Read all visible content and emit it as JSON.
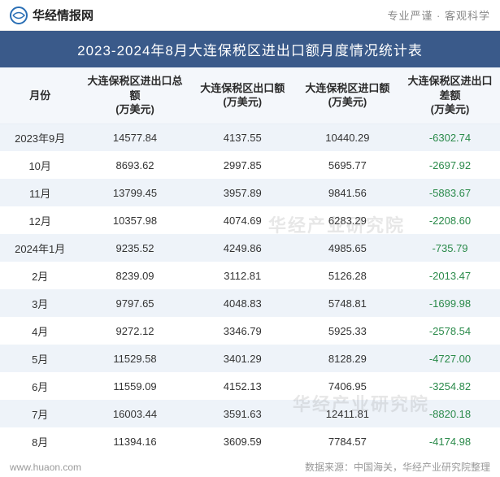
{
  "header": {
    "site_name": "华经情报网",
    "tagline": "专业严谨 · 客观科学"
  },
  "title": "2023-2024年8月大连保税区进出口额月度情况统计表",
  "columns": [
    "月份",
    "大连保税区进出口总额\n(万美元)",
    "大连保税区出口额\n(万美元)",
    "大连保税区进口额\n(万美元)",
    "大连保税区进出口差额\n(万美元)"
  ],
  "col_widths": [
    "16%",
    "22%",
    "21%",
    "21%",
    "20%"
  ],
  "rows": [
    [
      "2023年9月",
      "14577.84",
      "4137.55",
      "10440.29",
      "-6302.74"
    ],
    [
      "10月",
      "8693.62",
      "2997.85",
      "5695.77",
      "-2697.92"
    ],
    [
      "11月",
      "13799.45",
      "3957.89",
      "9841.56",
      "-5883.67"
    ],
    [
      "12月",
      "10357.98",
      "4074.69",
      "6283.29",
      "-2208.60"
    ],
    [
      "2024年1月",
      "9235.52",
      "4249.86",
      "4985.65",
      "-735.79"
    ],
    [
      "2月",
      "8239.09",
      "3112.81",
      "5126.28",
      "-2013.47"
    ],
    [
      "3月",
      "9797.65",
      "4048.83",
      "5748.81",
      "-1699.98"
    ],
    [
      "4月",
      "9272.12",
      "3346.79",
      "5925.33",
      "-2578.54"
    ],
    [
      "5月",
      "11529.58",
      "3401.29",
      "8128.29",
      "-4727.00"
    ],
    [
      "6月",
      "11559.09",
      "4152.13",
      "7406.95",
      "-3254.82"
    ],
    [
      "7月",
      "16003.44",
      "3591.63",
      "12411.81",
      "-8820.18"
    ],
    [
      "8月",
      "11394.16",
      "3609.59",
      "7784.57",
      "-4174.98"
    ]
  ],
  "footer": {
    "source_url": "www.huaon.com",
    "credit": "数据来源：中国海关，华经产业研究院整理"
  },
  "watermark_text": "华经产业研究院",
  "colors": {
    "title_bg": "#3a5a8a",
    "header_row_bg": "#f4f7fb",
    "row_odd_bg": "#eef3f9",
    "row_even_bg": "#ffffff",
    "diff_text": "#2a8a4a",
    "text_primary": "#333",
    "text_muted": "#888"
  }
}
